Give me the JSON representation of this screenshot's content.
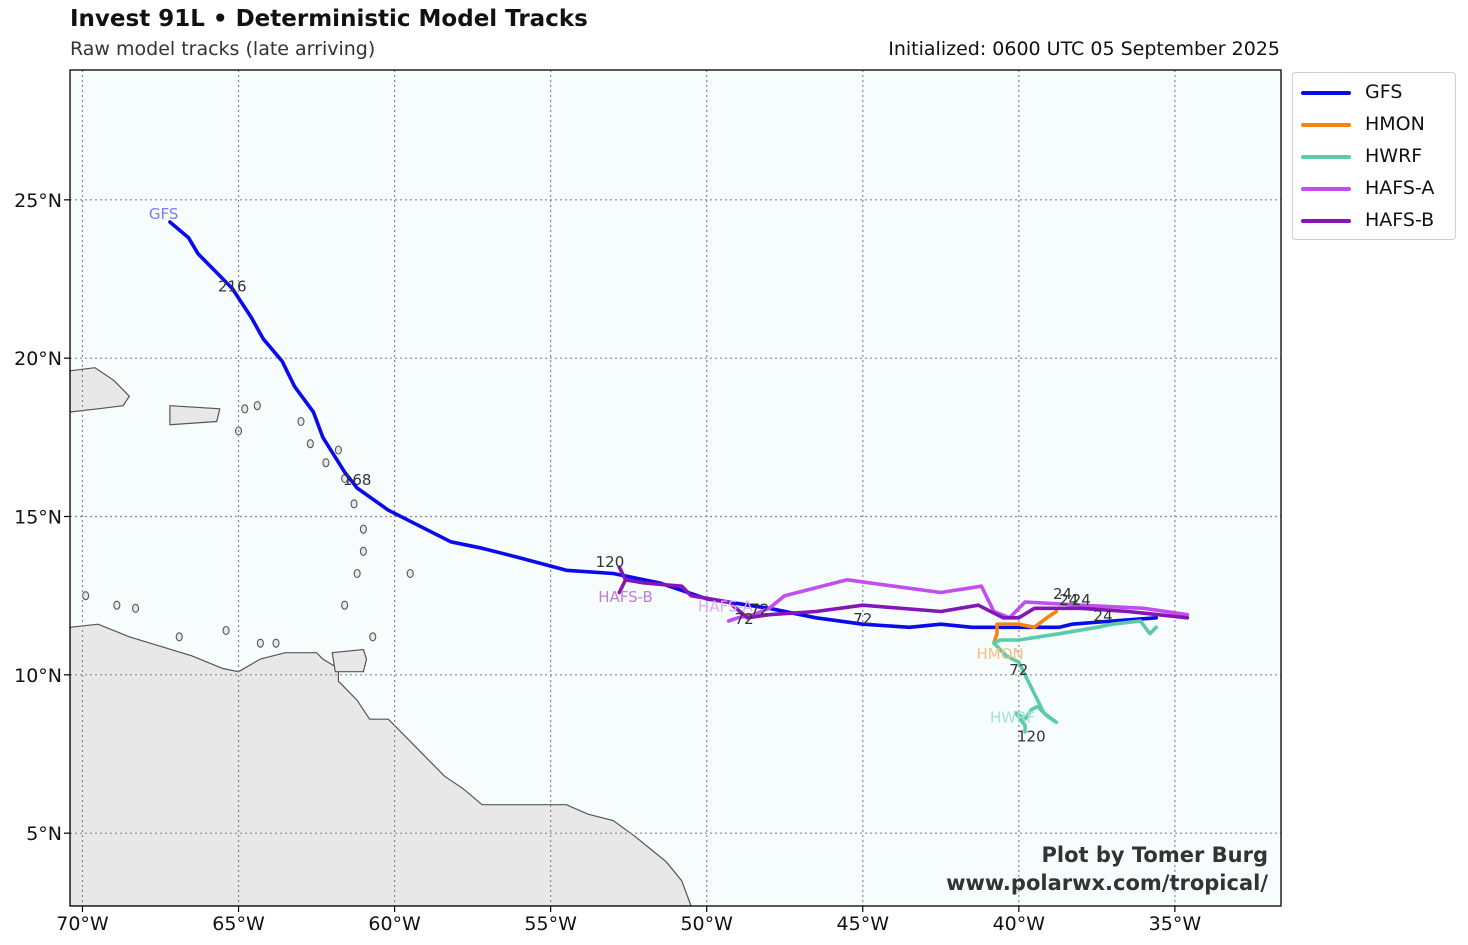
{
  "header": {
    "title": "Invest 91L • Deterministic Model Tracks",
    "subtitle": "Raw model tracks (late arriving)",
    "initialized": "Initialized: 0600 UTC 05 September 2025"
  },
  "credit": {
    "line1": "Plot by Tomer Burg",
    "line2": "www.polarwx.com/tropical/"
  },
  "colors": {
    "ocean": "#f7fcfd",
    "land": "#e8e8e8",
    "coast": "#555555",
    "grid": "#888888"
  },
  "chart_data": {
    "type": "line",
    "extent": {
      "lon": [
        -70.4,
        -31.6
      ],
      "lat": [
        2.7,
        29.1
      ]
    },
    "x_ticks": [
      {
        "lon": -70,
        "label": "70°W"
      },
      {
        "lon": -65,
        "label": "65°W"
      },
      {
        "lon": -60,
        "label": "60°W"
      },
      {
        "lon": -55,
        "label": "55°W"
      },
      {
        "lon": -50,
        "label": "50°W"
      },
      {
        "lon": -45,
        "label": "45°W"
      },
      {
        "lon": -40,
        "label": "40°W"
      },
      {
        "lon": -35,
        "label": "35°W"
      }
    ],
    "y_ticks": [
      {
        "lat": 5,
        "label": "5°N"
      },
      {
        "lat": 10,
        "label": "10°N"
      },
      {
        "lat": 15,
        "label": "15°N"
      },
      {
        "lat": 20,
        "label": "20°N"
      },
      {
        "lat": 25,
        "label": "25°N"
      }
    ],
    "grid": true,
    "legend_position": "outside-right-top",
    "series": [
      {
        "name": "GFS",
        "color": "#0a0aeb",
        "label_color": "#7d7df0",
        "points": [
          [
            -35.6,
            11.8
          ],
          [
            -37,
            11.7
          ],
          [
            -38.3,
            11.6
          ],
          [
            -38.7,
            11.5
          ],
          [
            -40,
            11.5
          ],
          [
            -41.5,
            11.5
          ],
          [
            -42.5,
            11.6
          ],
          [
            -43.5,
            11.5
          ],
          [
            -45,
            11.6
          ],
          [
            -46.5,
            11.8
          ],
          [
            -48,
            12.1
          ],
          [
            -50,
            12.4
          ],
          [
            -51.5,
            12.9
          ],
          [
            -53,
            13.2
          ],
          [
            -54.5,
            13.3
          ],
          [
            -56,
            13.7
          ],
          [
            -57.2,
            14.0
          ],
          [
            -58.2,
            14.2
          ],
          [
            -59.4,
            14.8
          ],
          [
            -60.2,
            15.2
          ],
          [
            -61.2,
            15.9
          ],
          [
            -61.6,
            16.4
          ],
          [
            -62.3,
            17.5
          ],
          [
            -62.6,
            18.3
          ],
          [
            -63.2,
            19.1
          ],
          [
            -63.6,
            19.9
          ],
          [
            -64.2,
            20.6
          ],
          [
            -64.6,
            21.3
          ],
          [
            -65.2,
            22.2
          ],
          [
            -65.8,
            22.8
          ],
          [
            -66.3,
            23.3
          ],
          [
            -66.6,
            23.8
          ],
          [
            -67.2,
            24.3
          ]
        ],
        "end_label": "GFS",
        "end_label_at": [
          -67.4,
          24.4
        ],
        "hour_labels": [
          {
            "text": "120",
            "at": [
              -53.1,
              13.4
            ]
          },
          {
            "text": "168",
            "at": [
              -61.2,
              16.0
            ]
          },
          {
            "text": "216",
            "at": [
              -65.2,
              22.1
            ]
          },
          {
            "text": "72",
            "at": [
              -45.0,
              11.6
            ]
          }
        ]
      },
      {
        "name": "HMON",
        "color": "#f5840c",
        "label_color": "#f6c080",
        "points": [
          [
            -38.8,
            12.0
          ],
          [
            -39.1,
            11.8
          ],
          [
            -39.5,
            11.5
          ],
          [
            -40.0,
            11.6
          ],
          [
            -40.7,
            11.6
          ],
          [
            -40.7,
            11.3
          ],
          [
            -40.8,
            11.0
          ]
        ],
        "end_label": "HMON",
        "end_label_at": [
          -40.6,
          10.5
        ],
        "hour_labels": [
          {
            "text": "24",
            "at": [
              -38.6,
              12.4
            ]
          }
        ]
      },
      {
        "name": "HWRF",
        "color": "#5ccba9",
        "label_color": "#a7e2d0",
        "points": [
          [
            -35.6,
            11.5
          ],
          [
            -35.8,
            11.3
          ],
          [
            -36.1,
            11.7
          ],
          [
            -37.0,
            11.6
          ],
          [
            -37.5,
            11.5
          ],
          [
            -38.7,
            11.3
          ],
          [
            -40.0,
            11.1
          ],
          [
            -40.6,
            11.1
          ],
          [
            -40.8,
            11.0
          ],
          [
            -40.4,
            10.6
          ],
          [
            -40.0,
            10.4
          ],
          [
            -39.6,
            9.6
          ],
          [
            -39.4,
            9.2
          ],
          [
            -39.2,
            8.8
          ],
          [
            -38.8,
            8.5
          ],
          [
            -39.1,
            8.7
          ],
          [
            -39.4,
            9.0
          ],
          [
            -39.6,
            8.9
          ],
          [
            -39.8,
            8.6
          ],
          [
            -40.1,
            8.8
          ],
          [
            -39.8,
            8.4
          ],
          [
            -39.8,
            8.2
          ]
        ],
        "end_label": "HWRF",
        "end_label_at": [
          -40.2,
          8.5
        ],
        "hour_labels": [
          {
            "text": "24",
            "at": [
              -37.3,
              11.7
            ]
          },
          {
            "text": "72",
            "at": [
              -40.0,
              10.0
            ]
          },
          {
            "text": "120",
            "at": [
              -39.6,
              7.9
            ]
          }
        ]
      },
      {
        "name": "HAFS-A",
        "color": "#c34ef0",
        "label_color": "#e0a8f5",
        "points": [
          [
            -34.6,
            11.9
          ],
          [
            -36,
            12.1
          ],
          [
            -38,
            12.2
          ],
          [
            -39.8,
            12.3
          ],
          [
            -40.3,
            11.8
          ],
          [
            -40.8,
            12.0
          ],
          [
            -41.2,
            12.8
          ],
          [
            -42.5,
            12.6
          ],
          [
            -44,
            12.8
          ],
          [
            -45.5,
            13.0
          ],
          [
            -47.5,
            12.5
          ],
          [
            -48.0,
            12.1
          ],
          [
            -48.5,
            11.9
          ],
          [
            -49.0,
            11.8
          ],
          [
            -49.3,
            11.7
          ]
        ],
        "end_label": "HAFS-A",
        "end_label_at": [
          -49.4,
          12.0
        ],
        "hour_labels": [
          {
            "text": "24",
            "at": [
              -38.4,
              12.2
            ]
          },
          {
            "text": "72",
            "at": [
              -48.3,
              11.9
            ]
          }
        ]
      },
      {
        "name": "HAFS-B",
        "color": "#8615b8",
        "label_color": "#c17ed8",
        "points": [
          [
            -34.6,
            11.8
          ],
          [
            -36.5,
            12.0
          ],
          [
            -38,
            12.1
          ],
          [
            -39.5,
            12.1
          ],
          [
            -40,
            11.8
          ],
          [
            -40.5,
            11.8
          ],
          [
            -41.3,
            12.2
          ],
          [
            -42.5,
            12.0
          ],
          [
            -45,
            12.2
          ],
          [
            -46.5,
            12.0
          ],
          [
            -48,
            11.9
          ],
          [
            -48.7,
            11.8
          ],
          [
            -49.3,
            12.3
          ],
          [
            -50.5,
            12.5
          ],
          [
            -50.8,
            12.8
          ],
          [
            -52.0,
            12.9
          ],
          [
            -52.6,
            13.0
          ],
          [
            -52.8,
            13.4
          ],
          [
            -52.6,
            13.0
          ],
          [
            -52.8,
            12.6
          ]
        ],
        "end_label": "HAFS-B",
        "end_label_at": [
          -52.6,
          12.3
        ],
        "hour_labels": [
          {
            "text": "24",
            "at": [
              -38.0,
              12.2
            ]
          },
          {
            "text": "72",
            "at": [
              -48.8,
              11.6
            ]
          }
        ]
      }
    ],
    "land": [
      [
        [
          -70.4,
          2.7
        ],
        [
          -70.4,
          11.5
        ],
        [
          -69.5,
          11.6
        ],
        [
          -68.5,
          11.2
        ],
        [
          -67.5,
          10.9
        ],
        [
          -66.5,
          10.6
        ],
        [
          -65.5,
          10.2
        ],
        [
          -65.0,
          10.1
        ],
        [
          -64.3,
          10.5
        ],
        [
          -63.5,
          10.7
        ],
        [
          -62.5,
          10.7
        ],
        [
          -62.3,
          10.5
        ],
        [
          -61.8,
          10.2
        ],
        [
          -61.8,
          9.8
        ],
        [
          -61.2,
          9.2
        ],
        [
          -60.8,
          8.6
        ],
        [
          -60.2,
          8.6
        ],
        [
          -59.6,
          8.0
        ],
        [
          -58.9,
          7.3
        ],
        [
          -58.4,
          6.8
        ],
        [
          -57.8,
          6.4
        ],
        [
          -57.2,
          5.9
        ],
        [
          -56.5,
          5.9
        ],
        [
          -55.5,
          5.9
        ],
        [
          -54.5,
          5.9
        ],
        [
          -53.8,
          5.6
        ],
        [
          -53.0,
          5.4
        ],
        [
          -52.3,
          4.9
        ],
        [
          -51.8,
          4.5
        ],
        [
          -51.3,
          4.1
        ],
        [
          -50.8,
          3.5
        ],
        [
          -50.5,
          2.7
        ]
      ],
      [
        [
          -62.0,
          10.7
        ],
        [
          -61.0,
          10.8
        ],
        [
          -60.9,
          10.5
        ],
        [
          -61.0,
          10.1
        ],
        [
          -61.9,
          10.1
        ]
      ],
      [
        [
          -70.4,
          19.6
        ],
        [
          -69.6,
          19.7
        ],
        [
          -69.0,
          19.3
        ],
        [
          -68.5,
          18.8
        ],
        [
          -68.7,
          18.5
        ],
        [
          -69.5,
          18.4
        ],
        [
          -70.4,
          18.3
        ]
      ],
      [
        [
          -67.2,
          18.5
        ],
        [
          -65.6,
          18.4
        ],
        [
          -65.7,
          18.0
        ],
        [
          -67.2,
          17.9
        ]
      ]
    ],
    "islands": [
      [
        -64.8,
        18.4
      ],
      [
        -64.4,
        18.5
      ],
      [
        -65.0,
        17.7
      ],
      [
        -63.0,
        18.0
      ],
      [
        -62.7,
        17.3
      ],
      [
        -62.2,
        16.7
      ],
      [
        -61.8,
        17.1
      ],
      [
        -61.6,
        16.2
      ],
      [
        -61.3,
        15.4
      ],
      [
        -61.0,
        14.6
      ],
      [
        -61.0,
        13.9
      ],
      [
        -61.2,
        13.2
      ],
      [
        -59.5,
        13.2
      ],
      [
        -61.6,
        12.2
      ],
      [
        -60.7,
        11.2
      ],
      [
        -64.3,
        11.0
      ],
      [
        -63.8,
        11.0
      ],
      [
        -68.9,
        12.2
      ],
      [
        -69.9,
        12.5
      ],
      [
        -68.3,
        12.1
      ],
      [
        -66.9,
        11.2
      ],
      [
        -65.4,
        11.4
      ]
    ]
  }
}
